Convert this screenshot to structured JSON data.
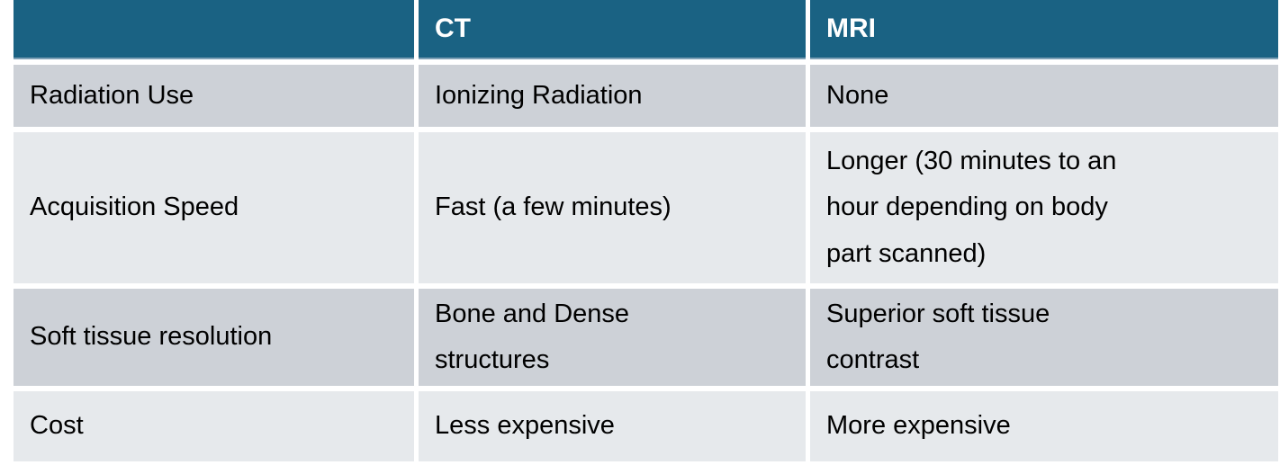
{
  "table": {
    "headers": {
      "blank": "",
      "ct": "CT",
      "mri": "MRI"
    },
    "rows": [
      {
        "label": "Radiation Use",
        "ct": "Ionizing Radiation",
        "mri": "None"
      },
      {
        "label": "Acquisition Speed",
        "ct": "Fast (a few minutes)",
        "mri": "Longer (30 minutes to an hour depending on body part scanned)"
      },
      {
        "label": "Soft tissue resolution",
        "ct": "Bone and Dense structures",
        "mri": "Superior soft tissue contrast"
      },
      {
        "label": "Cost",
        "ct": "Less expensive",
        "mri": "More expensive"
      }
    ],
    "colors": {
      "header_bg": "#1A6283",
      "header_text": "#FFFFFF",
      "header_underline": "#7DA0B6",
      "row_band_dark": "#CDD1D7",
      "row_band_light": "#E6E9EC",
      "body_text": "#000000",
      "gap": "#FFFFFF"
    }
  }
}
